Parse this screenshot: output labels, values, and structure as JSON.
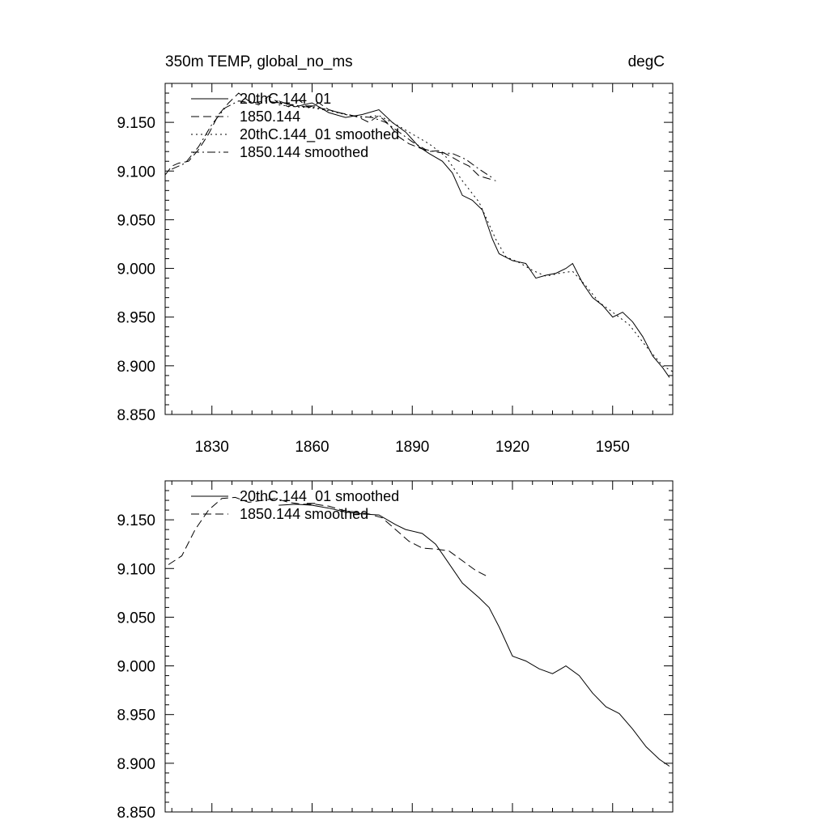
{
  "chart_data": [
    {
      "type": "line",
      "title_left": "350m TEMP, global_no_ms",
      "title_right": "degC",
      "xlim": [
        1816,
        1968
      ],
      "ylim": [
        8.85,
        9.19
      ],
      "x_ticks": [
        "1830",
        "1860",
        "1890",
        "1920",
        "1950"
      ],
      "y_ticks": [
        "9.150",
        "9.100",
        "9.050",
        "9.000",
        "8.950",
        "8.900",
        "8.850"
      ],
      "series": [
        {
          "name": "20thC.144_01",
          "dash": "solid",
          "x": [
            1850,
            1855,
            1860,
            1865,
            1870,
            1875,
            1880,
            1884,
            1888,
            1892,
            1895,
            1899,
            1902,
            1905,
            1908,
            1911,
            1914,
            1916,
            1920,
            1924,
            1927,
            1930,
            1933,
            1936,
            1938,
            1941,
            1944,
            1947,
            1950,
            1953,
            1956,
            1959,
            1962,
            1965,
            1967
          ],
          "y": [
            9.172,
            9.166,
            9.17,
            9.16,
            9.155,
            9.158,
            9.163,
            9.15,
            9.14,
            9.125,
            9.118,
            9.11,
            9.098,
            9.075,
            9.07,
            9.06,
            9.03,
            9.015,
            9.008,
            9.005,
            8.99,
            8.993,
            8.995,
            9.0,
            9.005,
            8.985,
            8.97,
            8.962,
            8.95,
            8.955,
            8.945,
            8.93,
            8.91,
            8.898,
            8.888
          ]
        },
        {
          "name": "1850.144",
          "dash": "dash",
          "x": [
            1816,
            1818,
            1820,
            1823,
            1826,
            1829,
            1832,
            1835,
            1838,
            1841,
            1844,
            1847,
            1850,
            1853,
            1856,
            1859,
            1862,
            1865,
            1868,
            1871,
            1874,
            1877,
            1880,
            1883,
            1886,
            1889,
            1892,
            1895,
            1898,
            1901,
            1904,
            1907,
            1910,
            1913,
            1915
          ],
          "y": [
            9.096,
            9.105,
            9.108,
            9.11,
            9.122,
            9.138,
            9.158,
            9.17,
            9.18,
            9.172,
            9.168,
            9.177,
            9.17,
            9.166,
            9.173,
            9.165,
            9.17,
            9.163,
            9.16,
            9.158,
            9.155,
            9.15,
            9.157,
            9.148,
            9.135,
            9.128,
            9.124,
            9.12,
            9.121,
            9.116,
            9.11,
            9.105,
            9.095,
            9.092,
            9.09
          ]
        },
        {
          "name": "20thC.144_01 smoothed",
          "dash": "dot",
          "x": [
            1850,
            1855,
            1860,
            1865,
            1870,
            1875,
            1880,
            1885,
            1890,
            1895,
            1900,
            1905,
            1910,
            1915,
            1918,
            1922,
            1926,
            1930,
            1934,
            1938,
            1942,
            1946,
            1950,
            1955,
            1960,
            1965,
            1968
          ],
          "y": [
            9.168,
            9.166,
            9.165,
            9.162,
            9.158,
            9.155,
            9.157,
            9.148,
            9.138,
            9.128,
            9.115,
            9.09,
            9.068,
            9.03,
            9.012,
            9.006,
            8.998,
            8.992,
            8.995,
            8.997,
            8.982,
            8.965,
            8.955,
            8.942,
            8.92,
            8.9,
            8.894
          ]
        },
        {
          "name": "1850.144 smoothed",
          "dash": "dashdot",
          "x": [
            1818,
            1822,
            1826,
            1830,
            1834,
            1838,
            1842,
            1846,
            1850,
            1854,
            1858,
            1862,
            1866,
            1870,
            1874,
            1878,
            1882,
            1886,
            1890,
            1894,
            1898,
            1902,
            1906,
            1910,
            1914
          ],
          "y": [
            9.102,
            9.108,
            9.125,
            9.148,
            9.165,
            9.172,
            9.17,
            9.172,
            9.17,
            9.168,
            9.166,
            9.165,
            9.162,
            9.158,
            9.156,
            9.155,
            9.15,
            9.14,
            9.13,
            9.122,
            9.119,
            9.118,
            9.112,
            9.102,
            9.093
          ]
        }
      ]
    },
    {
      "type": "line",
      "xlim": [
        1816,
        1968
      ],
      "ylim": [
        8.85,
        9.19
      ],
      "y_ticks": [
        "9.150",
        "9.100",
        "9.050",
        "9.000",
        "8.950",
        "8.900",
        "8.850"
      ],
      "series": [
        {
          "name": "20thC.144_01 smoothed",
          "dash": "solid",
          "x": [
            1850,
            1855,
            1860,
            1865,
            1870,
            1875,
            1880,
            1885,
            1888,
            1893,
            1897,
            1900,
            1905,
            1910,
            1913,
            1916,
            1920,
            1924,
            1928,
            1932,
            1934,
            1936,
            1940,
            1944,
            1948,
            1952,
            1956,
            1960,
            1964,
            1967
          ],
          "y": [
            9.165,
            9.166,
            9.165,
            9.162,
            9.158,
            9.156,
            9.155,
            9.145,
            9.14,
            9.136,
            9.125,
            9.11,
            9.085,
            9.07,
            9.06,
            9.04,
            9.01,
            9.005,
            8.997,
            8.992,
            8.996,
            9.0,
            8.99,
            8.972,
            8.958,
            8.951,
            8.935,
            8.917,
            8.904,
            8.897
          ]
        },
        {
          "name": "1850.144 smoothed",
          "dash": "dash",
          "x": [
            1817,
            1821,
            1825,
            1829,
            1833,
            1837,
            1841,
            1845,
            1849,
            1853,
            1857,
            1861,
            1865,
            1869,
            1873,
            1877,
            1881,
            1885,
            1889,
            1893,
            1897,
            1901,
            1905,
            1909,
            1913
          ],
          "y": [
            9.104,
            9.113,
            9.14,
            9.16,
            9.172,
            9.173,
            9.168,
            9.17,
            9.172,
            9.168,
            9.166,
            9.166,
            9.164,
            9.16,
            9.158,
            9.156,
            9.152,
            9.14,
            9.128,
            9.121,
            9.12,
            9.118,
            9.108,
            9.098,
            9.091
          ]
        }
      ]
    }
  ]
}
